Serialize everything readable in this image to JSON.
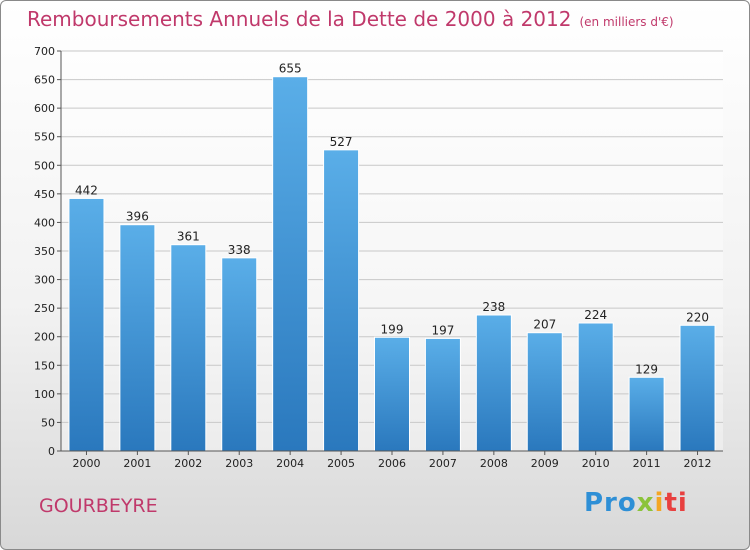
{
  "chart_data": {
    "type": "bar",
    "title": "Remboursements Annuels de la Dette de 2000 à 2012",
    "subtitle": "(en milliers d'€)",
    "categories": [
      "2000",
      "2001",
      "2002",
      "2003",
      "2004",
      "2005",
      "2006",
      "2007",
      "2008",
      "2009",
      "2010",
      "2011",
      "2012"
    ],
    "values": [
      442,
      396,
      361,
      338,
      655,
      527,
      199,
      197,
      238,
      207,
      224,
      129,
      220
    ],
    "yticks": [
      0,
      50,
      100,
      150,
      200,
      250,
      300,
      350,
      400,
      450,
      500,
      550,
      600,
      650,
      700
    ],
    "ylim": [
      0,
      700
    ],
    "grid": true,
    "bar_color": "#3a8fd4",
    "title_color": "#c0396b"
  },
  "footer": {
    "commune": "GOURBEYRE",
    "logo": [
      "Pro",
      "x",
      "i",
      "ti"
    ]
  }
}
